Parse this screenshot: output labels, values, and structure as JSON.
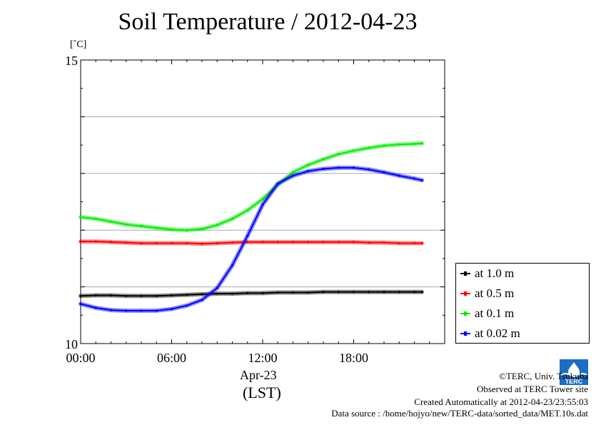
{
  "header": {
    "title": "Soil Temperature / 2012-04-23",
    "unit": "[˚C]"
  },
  "footer": {
    "copyright": "©TERC, Univ. Tsukuba",
    "observed": "Observed at TERC Tower site",
    "created": "Created Automatically at 2012-04-23/23:55:03",
    "source": "Data source : /home/hojyo/new/TERC-data/sorted_data/MET.10s.dat",
    "logo_text": "TERC"
  },
  "chart_data": {
    "type": "line",
    "title": "Soil Temperature / 2012-04-23",
    "ylabel": "[˚C]",
    "xlabel": "Apr-23",
    "xlabel_sub": "(LST)",
    "ylim": [
      10,
      15
    ],
    "xlim": [
      0,
      24
    ],
    "x_ticks": [
      0,
      6,
      12,
      18
    ],
    "x_tick_labels": [
      "00:00",
      "06:00",
      "12:00",
      "18:00"
    ],
    "y_ticks": [
      10,
      15
    ],
    "y_tick_labels": [
      "10",
      "15"
    ],
    "grid": true,
    "legend_position": "right",
    "x": [
      0,
      1,
      2,
      3,
      4,
      5,
      6,
      7,
      8,
      9,
      10,
      11,
      12,
      13,
      14,
      15,
      16,
      17,
      18,
      19,
      20,
      21,
      22,
      22.5
    ],
    "series": [
      {
        "name": "at 1.0 m",
        "color": "#000000",
        "values": [
          10.84,
          10.85,
          10.85,
          10.84,
          10.84,
          10.84,
          10.85,
          10.86,
          10.87,
          10.88,
          10.88,
          10.89,
          10.89,
          10.9,
          10.9,
          10.9,
          10.91,
          10.91,
          10.91,
          10.91,
          10.91,
          10.91,
          10.91,
          10.91
        ]
      },
      {
        "name": "at 0.5 m",
        "color": "#ff0000",
        "values": [
          11.8,
          11.8,
          11.79,
          11.78,
          11.77,
          11.77,
          11.77,
          11.77,
          11.76,
          11.77,
          11.78,
          11.79,
          11.79,
          11.79,
          11.79,
          11.79,
          11.79,
          11.79,
          11.79,
          11.78,
          11.78,
          11.77,
          11.77,
          11.77
        ]
      },
      {
        "name": "at 0.1 m",
        "color": "#00ee00",
        "values": [
          12.23,
          12.2,
          12.15,
          12.1,
          12.07,
          12.04,
          12.01,
          12.0,
          12.02,
          12.09,
          12.2,
          12.35,
          12.55,
          12.8,
          13.02,
          13.15,
          13.25,
          13.34,
          13.4,
          13.45,
          13.49,
          13.51,
          13.52,
          13.53
        ]
      },
      {
        "name": "at 0.02 m",
        "color": "#0000ff",
        "values": [
          10.7,
          10.63,
          10.59,
          10.58,
          10.58,
          10.58,
          10.61,
          10.67,
          10.77,
          10.98,
          11.38,
          11.9,
          12.45,
          12.82,
          12.96,
          13.04,
          13.08,
          13.1,
          13.1,
          13.07,
          13.02,
          12.96,
          12.91,
          12.88
        ]
      }
    ]
  }
}
